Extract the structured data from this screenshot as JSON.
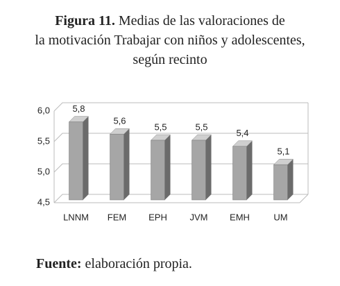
{
  "chart_data": {
    "type": "bar3d",
    "figure_label": "Figura 11.",
    "title": "Medias de las valoraciones de la motivación Trabajar con niños y adolescentes, según recinto",
    "categories": [
      "LNNM",
      "FEM",
      "EPH",
      "JVM",
      "EMH",
      "UM"
    ],
    "values": [
      5.8,
      5.6,
      5.5,
      5.5,
      5.4,
      5.1
    ],
    "value_labels": [
      "5,8",
      "5,6",
      "5,5",
      "5,5",
      "5,4",
      "5,1"
    ],
    "color": "#a6a6a6",
    "ylim": [
      4.5,
      6.0
    ],
    "yticks": [
      {
        "value": 4.5,
        "label": "4,5"
      },
      {
        "value": 5.0,
        "label": "5,0"
      },
      {
        "value": 5.5,
        "label": "5,5"
      },
      {
        "value": 6.0,
        "label": "6,0"
      }
    ],
    "grid": true,
    "source_label": "Fuente:",
    "source": "elaboración propia."
  }
}
